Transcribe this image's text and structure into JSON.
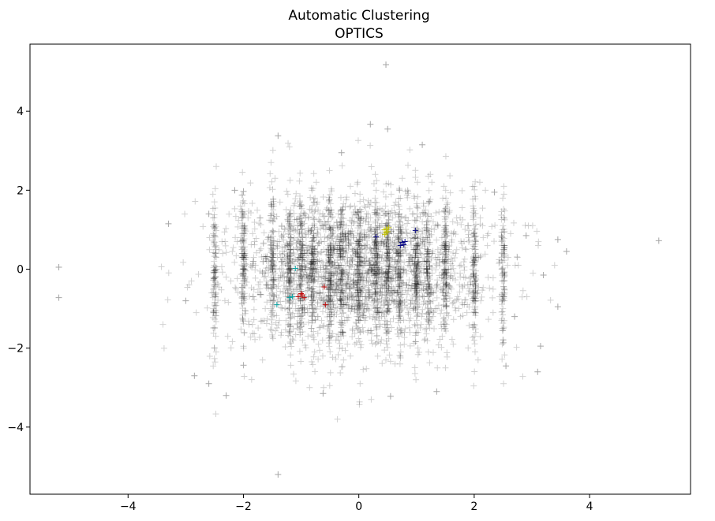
{
  "chart_data": {
    "type": "scatter",
    "title": "Automatic Clustering",
    "subtitle": "OPTICS",
    "xlabel": "",
    "ylabel": "",
    "xlim": [
      -5.7,
      5.75
    ],
    "ylim": [
      -5.7,
      5.7
    ],
    "xticks": [
      -4,
      -2,
      0,
      2,
      4
    ],
    "yticks": [
      -4,
      -2,
      0,
      2,
      4
    ],
    "xtick_labels": [
      "−4",
      "−2",
      "0",
      "2",
      "4"
    ],
    "ytick_labels": [
      "−4",
      "−2",
      "0",
      "2",
      "4"
    ],
    "grid": false,
    "marker": "+",
    "colors": {
      "noise": "#000000",
      "cluster_yellow": "#bfbf00",
      "cluster_navy": "#00007f",
      "cluster_red": "#bf0000",
      "cluster_teal": "#00a0a0"
    },
    "series": [
      {
        "role": "noise",
        "color_key": "noise",
        "points": [
          [
            0.47,
            5.18
          ],
          [
            5.2,
            0.72
          ],
          [
            -5.2,
            0.05
          ],
          [
            -5.2,
            -0.72
          ],
          [
            -1.4,
            -5.2
          ],
          [
            0.2,
            3.67
          ],
          [
            -1.4,
            3.38
          ],
          [
            3.15,
            -1.95
          ],
          [
            3.1,
            -2.6
          ],
          [
            -2.3,
            -3.2
          ],
          [
            -3.3,
            1.15
          ],
          [
            3.45,
            0.75
          ],
          [
            3.6,
            0.45
          ],
          [
            3.45,
            -0.95
          ],
          [
            -2.6,
            -2.9
          ],
          [
            2.55,
            -2.45
          ],
          [
            -0.62,
            -3.15
          ],
          [
            0.55,
            -3.22
          ],
          [
            1.35,
            -3.1
          ],
          [
            2.35,
            1.95
          ],
          [
            -2.15,
            2.0
          ],
          [
            1.1,
            3.15
          ],
          [
            0.5,
            3.55
          ],
          [
            -0.3,
            2.95
          ],
          [
            -2.85,
            -2.7
          ],
          [
            2.9,
            0.85
          ],
          [
            -3.0,
            -0.8
          ],
          [
            2.7,
            -1.2
          ],
          [
            -2.6,
            1.4
          ],
          [
            3.2,
            -0.15
          ]
        ]
      },
      {
        "role": "cluster",
        "color_key": "cluster_yellow",
        "points": [
          [
            0.48,
            1.02
          ],
          [
            0.5,
            0.95
          ],
          [
            0.45,
            0.88
          ],
          [
            0.52,
            1.05
          ],
          [
            0.47,
            0.92
          ],
          [
            0.44,
            1.0
          ]
        ]
      },
      {
        "role": "cluster",
        "color_key": "cluster_navy",
        "points": [
          [
            0.75,
            0.68
          ],
          [
            0.78,
            0.62
          ],
          [
            0.72,
            0.6
          ],
          [
            0.98,
            0.98
          ],
          [
            0.3,
            0.82
          ],
          [
            0.8,
            0.7
          ]
        ]
      },
      {
        "role": "cluster",
        "color_key": "cluster_red",
        "points": [
          [
            -1.0,
            -0.62
          ],
          [
            -0.95,
            -0.72
          ],
          [
            -1.05,
            -0.7
          ],
          [
            -0.6,
            -0.45
          ],
          [
            -0.58,
            -0.9
          ],
          [
            -0.98,
            -0.65
          ]
        ]
      },
      {
        "role": "cluster",
        "color_key": "cluster_teal",
        "points": [
          [
            -1.42,
            -0.9
          ],
          [
            -1.15,
            -0.7
          ],
          [
            -1.2,
            -0.72
          ],
          [
            -1.1,
            0.02
          ]
        ]
      }
    ]
  }
}
